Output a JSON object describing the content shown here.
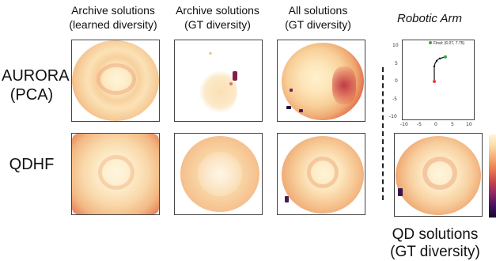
{
  "columns": [
    {
      "line1": "Archive solutions",
      "line2": "(learned diversity)"
    },
    {
      "line1": "Archive solutions",
      "line2": "(GT diversity)"
    },
    {
      "line1": "All solutions",
      "line2": "(GT diversity)"
    }
  ],
  "robotic_arm": {
    "title": "Robotic Arm",
    "legend": "Final: (6.07, 7.75)",
    "y_ticks": [
      "10",
      "5",
      "0",
      "-5",
      "-10"
    ],
    "x_ticks": [
      "-10",
      "-5",
      "0",
      "5",
      "10"
    ]
  },
  "rows": [
    {
      "line1": "AURORA",
      "line2": "(PCA)"
    },
    {
      "line1": "QDHF",
      "line2": ""
    }
  ],
  "qd_caption": {
    "line1": "QD solutions",
    "line2": "(GT diversity)"
  },
  "colors": {
    "light": "#fdf0c8",
    "mid": "#f1b37a",
    "dark": "#c6404c",
    "darkest": "#1a1030",
    "arm_line": "#111111",
    "arm_end": "#3fa33f",
    "arm_base": "#e2433a"
  }
}
